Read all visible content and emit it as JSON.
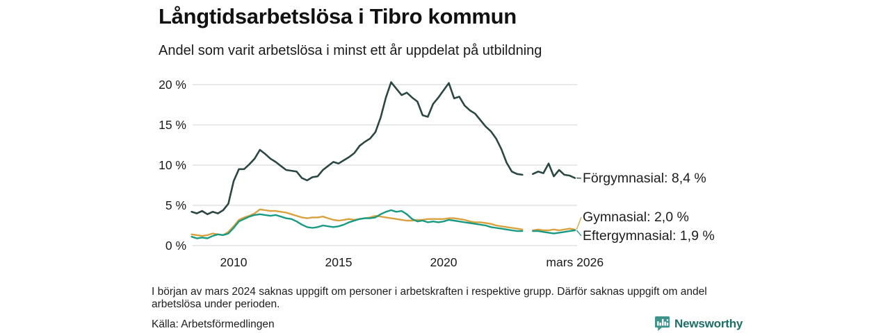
{
  "header": {
    "title": "Långtidsarbetslösa i Tibro kommun",
    "subtitle": "Andel som varit arbetslösa i minst ett år uppdelat på utbildning"
  },
  "chart_data": {
    "type": "line",
    "title": "Långtidsarbetslösa i Tibro kommun",
    "subtitle": "Andel som varit arbetslösa i minst ett år uppdelat på utbildning",
    "xlabel": "",
    "ylabel": "",
    "unit": "%",
    "ylim": [
      0,
      21
    ],
    "grid": "horizontal-only",
    "gridline_color": "#dcdcdc",
    "yticks": [
      {
        "value": 20,
        "label": "20 %"
      },
      {
        "value": 15,
        "label": "15 %"
      },
      {
        "value": 10,
        "label": "10 %"
      },
      {
        "value": 5,
        "label": "5 %"
      },
      {
        "value": 0,
        "label": "0 %"
      }
    ],
    "xticks": [
      {
        "value": 2010,
        "label": "2010"
      },
      {
        "value": 2015,
        "label": "2015"
      },
      {
        "value": 2020,
        "label": "2020"
      },
      {
        "value": 2026.25,
        "label": "mars 2026"
      }
    ],
    "x": [
      2008,
      2008.25,
      2008.5,
      2008.75,
      2009,
      2009.25,
      2009.5,
      2009.75,
      2010,
      2010.25,
      2010.5,
      2010.75,
      2011,
      2011.25,
      2011.5,
      2011.75,
      2012,
      2012.25,
      2012.5,
      2012.75,
      2013,
      2013.25,
      2013.5,
      2013.75,
      2014,
      2014.25,
      2014.5,
      2014.75,
      2015,
      2015.25,
      2015.5,
      2015.75,
      2016,
      2016.25,
      2016.5,
      2016.75,
      2017,
      2017.25,
      2017.5,
      2017.75,
      2018,
      2018.25,
      2018.5,
      2018.75,
      2019,
      2019.25,
      2019.5,
      2019.75,
      2020,
      2020.25,
      2020.5,
      2020.75,
      2021,
      2021.25,
      2021.5,
      2021.75,
      2022,
      2022.25,
      2022.5,
      2022.75,
      2023,
      2023.25,
      2023.5,
      2023.75,
      2024,
      2024.25,
      2024.5,
      2024.75,
      2025,
      2025.25,
      2025.5,
      2025.75,
      2026,
      2026.25
    ],
    "series": [
      {
        "name": "Förgymnasial",
        "end_label": "Förgymnasial: 8,4 %",
        "end_value": 8.4,
        "color": "#2b4743",
        "values": [
          4.2,
          4.0,
          4.3,
          3.9,
          4.2,
          4.0,
          4.4,
          5.2,
          8.0,
          9.5,
          9.5,
          10.1,
          10.8,
          11.9,
          11.4,
          10.8,
          10.4,
          9.9,
          9.4,
          9.3,
          9.2,
          8.4,
          8.1,
          8.5,
          8.6,
          9.4,
          9.9,
          10.4,
          10.2,
          10.6,
          11.0,
          11.5,
          12.4,
          12.9,
          13.3,
          14.1,
          15.9,
          18.4,
          20.3,
          19.5,
          18.7,
          19.0,
          18.4,
          17.9,
          16.2,
          16.0,
          17.6,
          18.4,
          19.3,
          20.2,
          18.3,
          18.5,
          17.4,
          16.8,
          16.4,
          15.6,
          14.8,
          14.2,
          13.3,
          12.0,
          10.3,
          9.2,
          8.9,
          8.8,
          null,
          8.9,
          9.2,
          9.0,
          10.2,
          8.6,
          9.4,
          8.8,
          8.7,
          8.4
        ]
      },
      {
        "name": "Gymnasial",
        "end_label": "Gymnasial: 2,0 %",
        "end_value": 2.0,
        "color": "#d8a13c",
        "values": [
          1.4,
          1.3,
          1.2,
          1.3,
          1.5,
          1.4,
          1.3,
          1.7,
          2.4,
          3.2,
          3.5,
          3.7,
          4.0,
          4.5,
          4.4,
          4.3,
          4.3,
          4.2,
          4.1,
          3.9,
          3.7,
          3.5,
          3.4,
          3.5,
          3.5,
          3.6,
          3.4,
          3.2,
          3.1,
          3.2,
          3.3,
          3.2,
          3.3,
          3.4,
          3.5,
          3.7,
          3.6,
          3.5,
          3.4,
          3.3,
          3.2,
          3.1,
          3.1,
          3.2,
          3.2,
          3.3,
          3.3,
          3.3,
          3.3,
          3.4,
          3.4,
          3.3,
          3.2,
          3.0,
          2.9,
          2.9,
          2.8,
          2.7,
          2.5,
          2.4,
          2.3,
          2.2,
          2.1,
          2.0,
          null,
          1.9,
          2.0,
          1.9,
          1.9,
          2.0,
          1.9,
          2.0,
          2.1,
          2.0
        ]
      },
      {
        "name": "Eftergymnasial",
        "end_label": "Eftergymnasial: 1,9 %",
        "end_value": 1.9,
        "color": "#169b82",
        "values": [
          1.1,
          0.9,
          1.0,
          0.9,
          1.2,
          1.4,
          1.3,
          1.5,
          2.2,
          3.0,
          3.3,
          3.6,
          3.8,
          3.9,
          3.8,
          3.7,
          3.8,
          3.6,
          3.4,
          3.3,
          3.0,
          2.6,
          2.3,
          2.2,
          2.3,
          2.5,
          2.4,
          2.3,
          2.4,
          2.6,
          2.9,
          3.1,
          3.3,
          3.4,
          3.4,
          3.5,
          3.9,
          4.2,
          4.4,
          4.2,
          4.3,
          3.9,
          3.3,
          3.0,
          3.1,
          2.9,
          3.0,
          2.9,
          3.0,
          3.2,
          3.1,
          3.0,
          2.9,
          2.8,
          2.7,
          2.6,
          2.5,
          2.3,
          2.2,
          2.1,
          2.0,
          1.9,
          1.8,
          1.8,
          null,
          1.8,
          1.8,
          1.7,
          1.6,
          1.5,
          1.6,
          1.7,
          1.8,
          1.9
        ]
      }
    ]
  },
  "footnote": "I början av mars 2024 saknas uppgift om personer i arbetskraften i respektive grupp. Därför saknas uppgift om andel arbetslösa under perioden.",
  "source": "Källa: Arbetsförmedlingen",
  "branding": {
    "name": "Newsworthy",
    "icon": "bar-chart-speech-bubble",
    "icon_color": "#3d948a",
    "text_color": "#1b6f65"
  }
}
